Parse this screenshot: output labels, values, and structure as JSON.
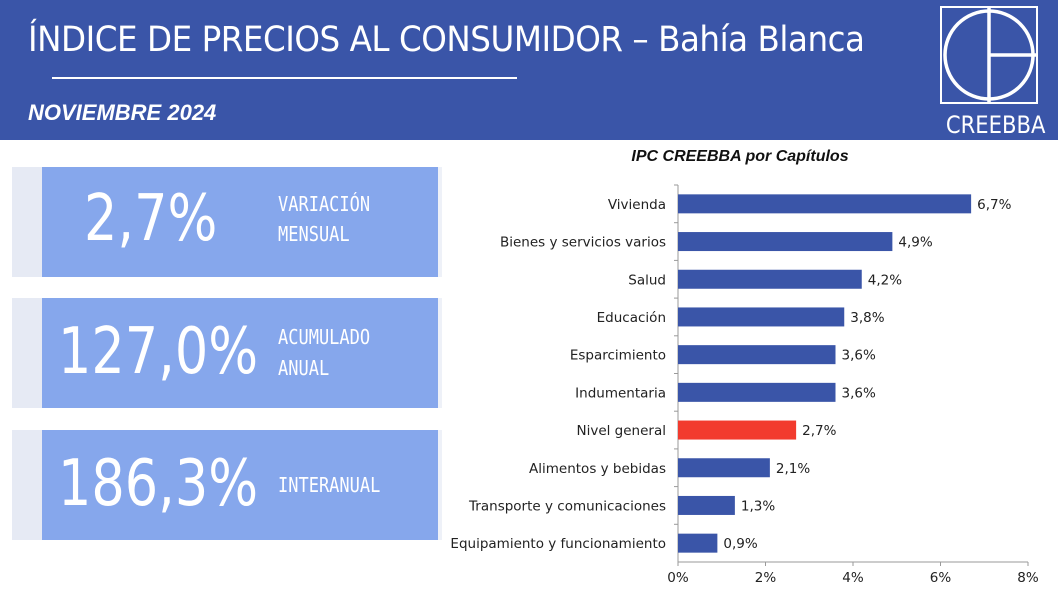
{
  "header": {
    "title": "ÍNDICE DE PRECIOS AL CONSUMIDOR – Bahía Blanca",
    "subtitle": "NOVIEMBRE 2024",
    "logo_text": "CREEBBA"
  },
  "cards": [
    {
      "value": "2,7%",
      "label_line1": "VARIACIÓN",
      "label_line2": "MENSUAL"
    },
    {
      "value": "127,0%",
      "label_line1": "ACUMULADO",
      "label_line2": "ANUAL"
    },
    {
      "value": "186,3%",
      "label_line1": "INTERANUAL",
      "label_line2": ""
    }
  ],
  "colors": {
    "header_bg": "#3a55a8",
    "card_bg": "#86a7ec",
    "bar": "#3a55a8",
    "bar_highlight": "#f23b2e"
  },
  "chart_data": {
    "type": "bar",
    "orientation": "horizontal",
    "title": "IPC CREEBBA por Capítulos",
    "categories": [
      "Vivienda",
      "Bienes y servicios varios",
      "Salud",
      "Educación",
      "Esparcimiento",
      "Indumentaria",
      "Nivel general",
      "Alimentos y bebidas",
      "Transporte y comunicaciones",
      "Equipamiento y funcionamiento"
    ],
    "values": [
      6.7,
      4.9,
      4.2,
      3.8,
      3.6,
      3.6,
      2.7,
      2.1,
      1.3,
      0.9
    ],
    "value_labels": [
      "6,7%",
      "4,9%",
      "4,2%",
      "3,8%",
      "3,6%",
      "3,6%",
      "2,7%",
      "2,1%",
      "1,3%",
      "0,9%"
    ],
    "highlight_category": "Nivel general",
    "xlim": [
      0,
      8
    ],
    "x_ticks": [
      "0%",
      "2%",
      "4%",
      "6%",
      "8%"
    ],
    "grid": false
  }
}
